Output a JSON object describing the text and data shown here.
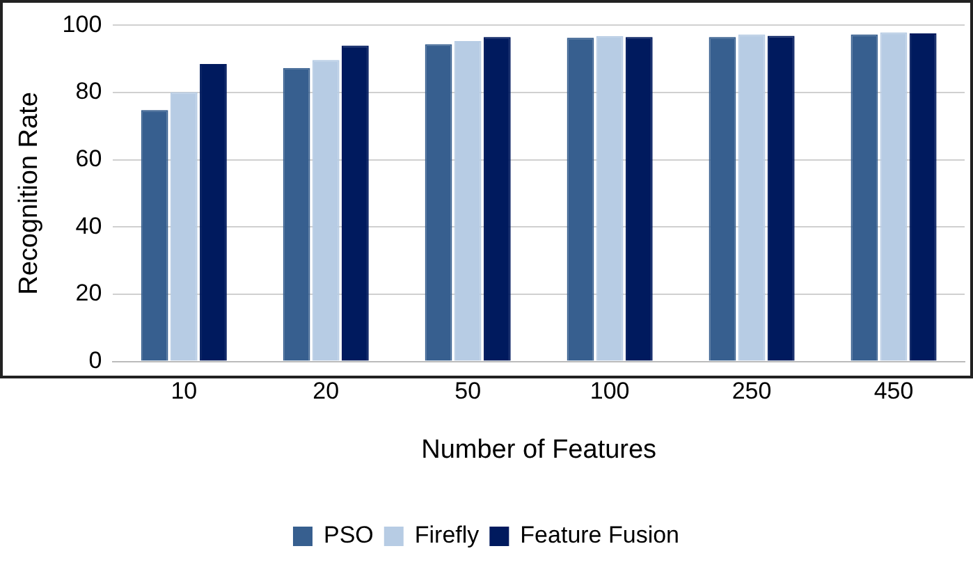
{
  "chart_data": {
    "type": "bar",
    "xlabel": "Number of Features",
    "ylabel": "Recognition Rate",
    "categories": [
      "10",
      "20",
      "50",
      "100",
      "250",
      "450"
    ],
    "series": [
      {
        "name": "PSO",
        "color": "#375f8f",
        "values": [
          74.8,
          87.3,
          94.4,
          96.3,
          96.5,
          97.3
        ]
      },
      {
        "name": "Firefly",
        "color": "#b7cce4",
        "values": [
          80.1,
          89.7,
          95.3,
          96.8,
          97.3,
          97.9
        ]
      },
      {
        "name": "Feature Fusion",
        "color": "#001a5e",
        "values": [
          88.5,
          94,
          96.5,
          96.5,
          96.9,
          97.6
        ]
      }
    ],
    "ylim": [
      0,
      100
    ],
    "yticks": [
      0,
      20,
      40,
      60,
      80,
      100
    ],
    "grid": "y",
    "legend": "bottom"
  }
}
